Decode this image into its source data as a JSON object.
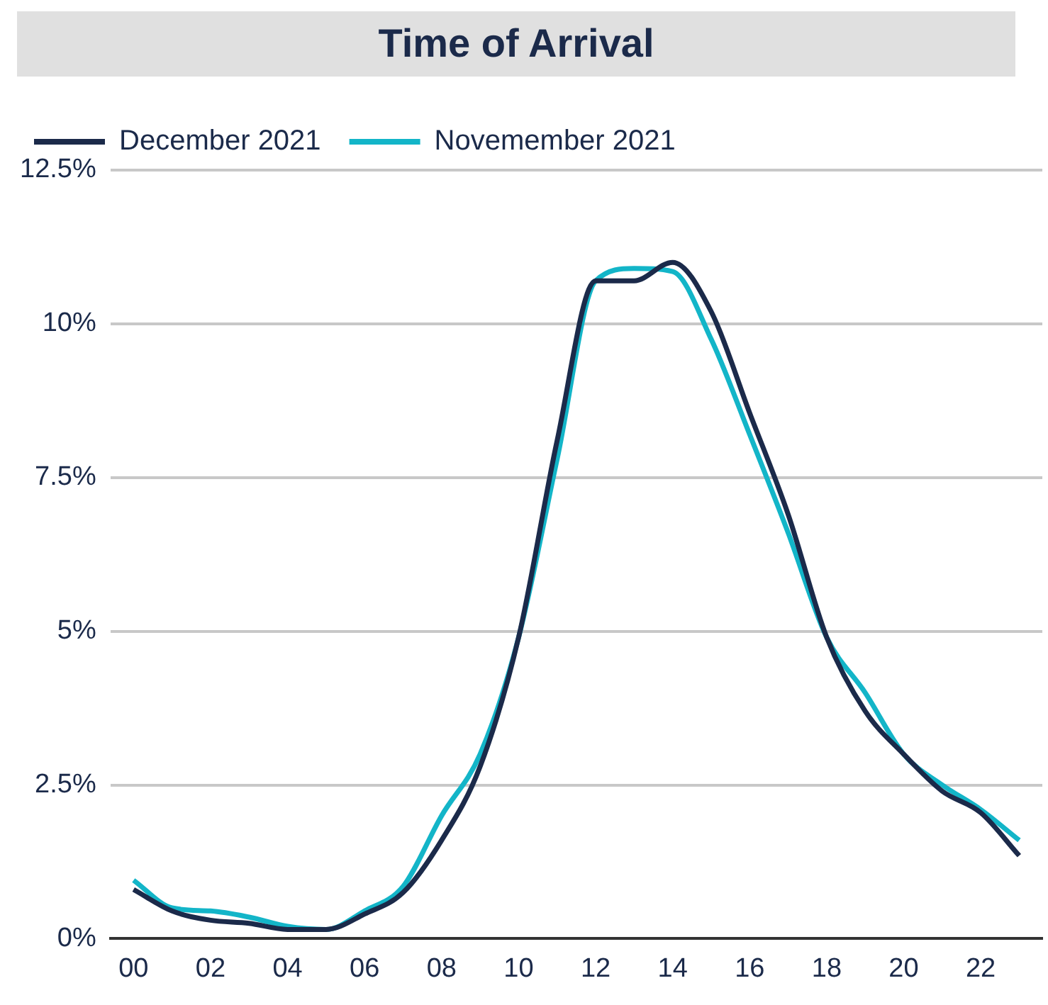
{
  "chart_data": {
    "type": "line",
    "title": "Time of Arrival",
    "x": [
      0,
      1,
      2,
      3,
      4,
      5,
      6,
      7,
      8,
      9,
      10,
      11,
      12,
      13,
      14,
      15,
      16,
      17,
      18,
      19,
      20,
      21,
      22,
      23
    ],
    "series": [
      {
        "name": "December 2021",
        "color": "#1b2a4a",
        "values": [
          0.8,
          0.45,
          0.3,
          0.25,
          0.15,
          0.15,
          0.4,
          0.75,
          1.6,
          2.8,
          4.9,
          8.1,
          10.7,
          10.7,
          11.0,
          10.2,
          8.55,
          6.9,
          4.9,
          3.7,
          3.0,
          2.4,
          2.05,
          1.35
        ]
      },
      {
        "name": "Novemember 2021",
        "color": "#13b5c8",
        "values": [
          0.95,
          0.5,
          0.45,
          0.35,
          0.2,
          0.15,
          0.45,
          0.85,
          2.0,
          3.0,
          4.9,
          7.8,
          10.7,
          10.9,
          10.85,
          9.75,
          8.2,
          6.6,
          4.9,
          4.0,
          3.0,
          2.5,
          2.1,
          1.6
        ]
      }
    ],
    "xlim": [
      -0.6,
      23.6
    ],
    "xticks": [
      {
        "value": 0,
        "label": "00"
      },
      {
        "value": 2,
        "label": "02"
      },
      {
        "value": 4,
        "label": "04"
      },
      {
        "value": 6,
        "label": "06"
      },
      {
        "value": 8,
        "label": "08"
      },
      {
        "value": 10,
        "label": "10"
      },
      {
        "value": 12,
        "label": "12"
      },
      {
        "value": 14,
        "label": "14"
      },
      {
        "value": 16,
        "label": "16"
      },
      {
        "value": 18,
        "label": "18"
      },
      {
        "value": 20,
        "label": "20"
      },
      {
        "value": 22,
        "label": "22"
      }
    ],
    "ylim": [
      0,
      12.5
    ],
    "yticks": [
      {
        "value": 0,
        "label": "0%"
      },
      {
        "value": 2.5,
        "label": "2.5%"
      },
      {
        "value": 5,
        "label": "5%"
      },
      {
        "value": 7.5,
        "label": "7.5%"
      },
      {
        "value": 10,
        "label": "10%"
      },
      {
        "value": 12.5,
        "label": "12.5%"
      }
    ],
    "grid": "y",
    "legend": "top left",
    "marker": "none",
    "line_style": "solid"
  }
}
